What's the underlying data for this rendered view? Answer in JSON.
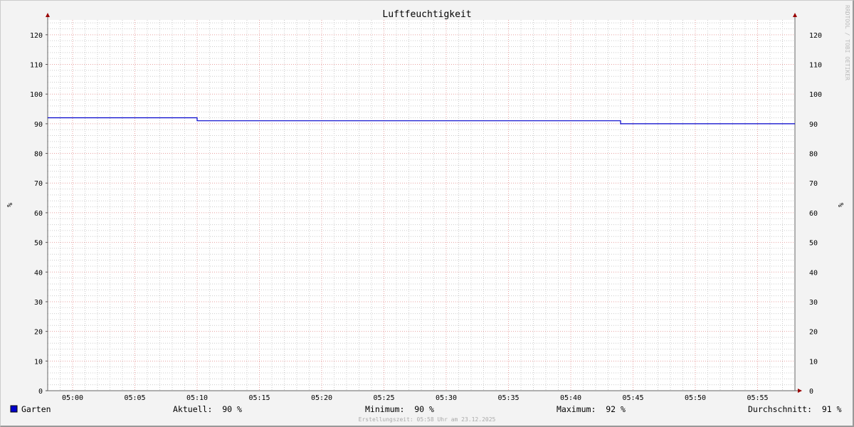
{
  "chart_data": {
    "type": "line",
    "title": "Luftfeuchtigkeit",
    "ylabel": "%",
    "ylabel_right": "%",
    "ylim": [
      0,
      125
    ],
    "yticks": [
      0,
      10,
      20,
      30,
      40,
      50,
      60,
      70,
      80,
      90,
      100,
      110,
      120
    ],
    "xlim": [
      "04:58",
      "05:58"
    ],
    "xticks": [
      "05:00",
      "05:05",
      "05:10",
      "05:15",
      "05:20",
      "05:25",
      "05:30",
      "05:35",
      "05:40",
      "05:45",
      "05:50",
      "05:55"
    ],
    "grid": true,
    "series": [
      {
        "name": "Garten",
        "color": "#0000cc",
        "points": [
          [
            "04:58",
            92
          ],
          [
            "05:10",
            92
          ],
          [
            "05:10",
            91
          ],
          [
            "05:44",
            91
          ],
          [
            "05:44",
            90
          ],
          [
            "05:58",
            90
          ]
        ]
      }
    ],
    "watermark": "RRDTOOL / TOBI OETIKER"
  },
  "legend": {
    "series_name": "Garten",
    "swatch_color": "#0000cc",
    "current": "Aktuell:  90 %",
    "minimum": "Minimum:  90 %",
    "maximum": "Maximum:  92 %",
    "average": "Durchschnitt:  91 %"
  },
  "footer": "Erstellungszeit: 05:58 Uhr am 23.12.2025"
}
